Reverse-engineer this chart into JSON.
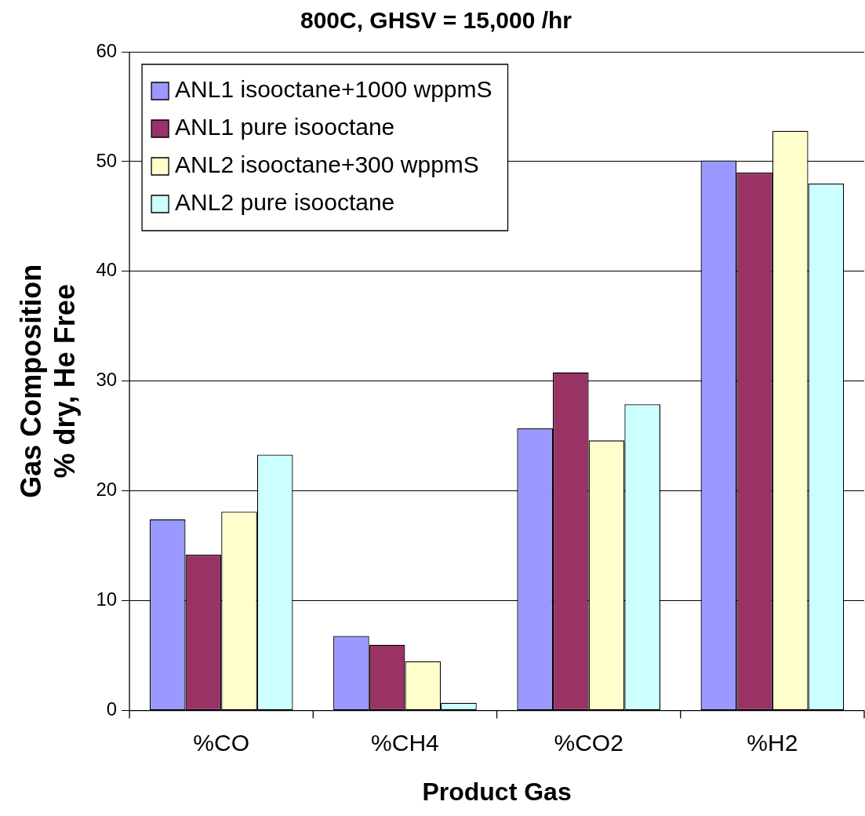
{
  "chart_data": {
    "type": "bar",
    "title": "800C, GHSV = 15,000 /hr",
    "xlabel": "Product Gas",
    "ylabel": "Gas Composition\n% dry, He Free",
    "categories": [
      "%CO",
      "%CH4",
      "%CO2",
      "%H2"
    ],
    "series": [
      {
        "name": "ANL1 isooctane+1000 wppmS",
        "color": "#9999ff",
        "values": [
          17.4,
          6.8,
          25.7,
          50.1
        ]
      },
      {
        "name": "ANL1 pure isooctane",
        "color": "#993366",
        "values": [
          14.2,
          6.0,
          30.8,
          49.0
        ]
      },
      {
        "name": "ANL2 isooctane+300 wppmS",
        "color": "#ffffcc",
        "values": [
          18.1,
          4.5,
          24.6,
          52.8
        ]
      },
      {
        "name": "ANL2 pure isooctane",
        "color": "#ccffff",
        "values": [
          23.3,
          0.7,
          27.9,
          48.0
        ]
      }
    ],
    "ylim": [
      0,
      60
    ],
    "yticks": [
      0,
      10,
      20,
      30,
      40,
      50,
      60
    ],
    "grid": "y",
    "legend": "top left"
  }
}
